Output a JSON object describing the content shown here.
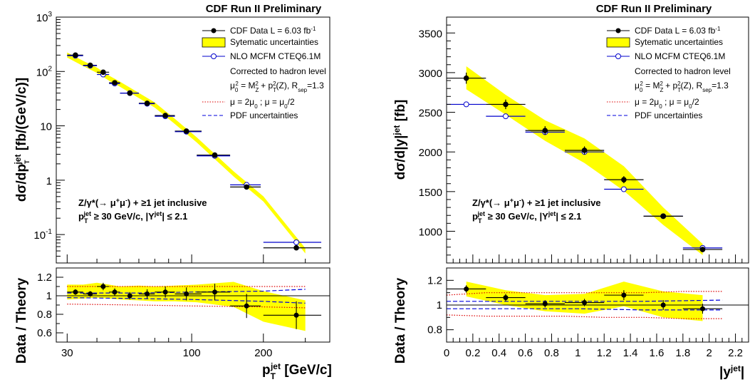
{
  "colors": {
    "band": "#ffff00",
    "band_edge": "#cccc00",
    "data": "#000000",
    "nlo": "#0000cc",
    "scale": "#dd0000",
    "pdf": "#0000dd"
  },
  "chart_data": [
    {
      "type": "scatter",
      "title": "CDF Run II Preliminary",
      "xlabel": "p_T^jet [GeV/c]",
      "ylabel": "dσ/dp_T^jet [fb/(GeV/c)]",
      "ratio_ylabel": "Data / Theory",
      "xscale": "log",
      "yscale": "log",
      "xlim": [
        27,
        380
      ],
      "ylim": [
        0.03,
        1000
      ],
      "ratio_ylim": [
        0.5,
        1.3
      ],
      "x_ticks": [
        "30",
        "100",
        "200"
      ],
      "y_ticks": [
        "10^-1",
        "1",
        "10",
        "10^2",
        "10^3"
      ],
      "ratio_ticks": [
        "0.6",
        "0.8",
        "1",
        "1.2"
      ],
      "legend": {
        "data": "CDF Data  L = 6.03 fb",
        "data_sup": "-1",
        "syst": "Sytematic uncertainties",
        "nlo": "NLO MCFM CTEQ6.1M",
        "corr": "Corrected to hadron level",
        "scale_def": "μ0² = MZ² + pT²(Z), Rsep=1.3",
        "scale_var": "μ = 2μ0 ; μ = μ0/2",
        "pdf": "PDF uncertainties"
      },
      "annotation": [
        "Z/γ*(→ μ+μ-) + ≥1 jet inclusive",
        "pT^jet ≥ 30 GeV/c, |Y^jet| ≤ 2.1"
      ],
      "series": [
        {
          "name": "CDF Data",
          "x": [
            32.5,
            37.5,
            42.5,
            47.5,
            55,
            65,
            77.5,
            95,
            125,
            170,
            275
          ],
          "xerr_lo": [
            2.5,
            2.5,
            2.5,
            2.5,
            5,
            5,
            7.5,
            10,
            20,
            25,
            75
          ],
          "xerr_hi": [
            2.5,
            2.5,
            2.5,
            2.5,
            5,
            5,
            7.5,
            15,
            20,
            25,
            75
          ],
          "y": [
            200,
            130,
            97,
            62,
            40,
            26,
            15.5,
            8.0,
            2.9,
            0.75,
            0.057
          ],
          "ratio": [
            1.04,
            1.02,
            1.1,
            1.04,
            1.0,
            1.02,
            1.04,
            1.02,
            1.04,
            0.89,
            0.79
          ],
          "ratio_err": [
            0.03,
            0.03,
            0.04,
            0.04,
            0.04,
            0.05,
            0.06,
            0.07,
            0.09,
            0.13,
            0.15
          ]
        },
        {
          "name": "NLO MCFM CTEQ6.1M",
          "x": [
            32.5,
            37.5,
            42.5,
            47.5,
            55,
            65,
            77.5,
            95,
            125,
            170,
            275
          ],
          "y": [
            195,
            128,
            88,
            60,
            40,
            25.5,
            15,
            7.8,
            2.8,
            0.82,
            0.072
          ]
        }
      ],
      "syst_band": {
        "x": [
          30,
          35,
          40,
          45,
          50,
          60,
          70,
          85,
          105,
          150,
          200,
          300
        ],
        "y": [
          200,
          140,
          105,
          75,
          58,
          36,
          24,
          12,
          5.5,
          1.3,
          0.45,
          0.05
        ],
        "rel_hi": [
          1.12,
          1.12,
          1.14,
          1.12,
          1.1,
          1.11,
          1.1,
          1.11,
          1.12,
          1.15,
          1.05,
          0.95
        ],
        "rel_lo": [
          0.96,
          0.97,
          0.98,
          0.97,
          0.96,
          0.95,
          0.94,
          0.94,
          0.93,
          0.88,
          0.72,
          0.62
        ]
      },
      "scale_band": {
        "x": [
          30,
          60,
          100,
          200,
          300
        ],
        "hi": [
          1.1,
          1.1,
          1.1,
          1.1,
          1.1
        ],
        "lo": [
          0.91,
          0.9,
          0.89,
          0.88,
          0.87
        ]
      },
      "pdf_band": {
        "x": [
          30,
          60,
          100,
          200,
          300
        ],
        "hi": [
          1.03,
          1.03,
          1.04,
          1.05,
          1.07
        ],
        "lo": [
          0.98,
          0.97,
          0.96,
          0.94,
          0.92
        ]
      }
    },
    {
      "type": "scatter",
      "title": "CDF Run II Preliminary",
      "xlabel": "|y^jet|",
      "ylabel": "dσ/d|y|^jet [fb]",
      "ratio_ylabel": "Data / Theory",
      "xlim": [
        0,
        2.3
      ],
      "ylim": [
        600,
        3700
      ],
      "ratio_ylim": [
        0.7,
        1.3
      ],
      "x_ticks": [
        "0",
        "0.2",
        "0.4",
        "0.6",
        "0.8",
        "1",
        "1.2",
        "1.4",
        "1.6",
        "1.8",
        "2",
        "2.2"
      ],
      "y_ticks": [
        "1000",
        "1500",
        "2000",
        "2500",
        "3000",
        "3500"
      ],
      "ratio_ticks": [
        "0.8",
        "1",
        "1.2"
      ],
      "legend": {
        "data": "CDF Data  L = 6.03 fb",
        "data_sup": "-1",
        "syst": "Sytematic uncertainties",
        "nlo": "NLO MCFM CTEQ6.1M",
        "corr": "Corrected to hadron level",
        "scale_def": "μ0² = MZ² + pT²(Z), Rsep=1.3",
        "scale_var": "μ = 2μ0 ; μ = μ0/2",
        "pdf": "PDF uncertainties"
      },
      "annotation": [
        "Z/γ*(→ μ+μ-) + ≥1 jet inclusive",
        "pT^jet ≥ 30 GeV/c, |Y^jet| ≤ 2.1"
      ],
      "series": [
        {
          "name": "CDF Data",
          "x": [
            0.15,
            0.45,
            0.75,
            1.05,
            1.35,
            1.65,
            1.95
          ],
          "xerr": [
            0.15,
            0.15,
            0.15,
            0.15,
            0.15,
            0.15,
            0.15
          ],
          "y": [
            2930,
            2600,
            2270,
            2020,
            1650,
            1190,
            770
          ],
          "yerr": [
            70,
            60,
            55,
            50,
            45,
            30,
            25
          ],
          "ratio": [
            1.13,
            1.06,
            1.01,
            1.02,
            1.08,
            1.0,
            0.97
          ],
          "ratio_err": [
            0.03,
            0.03,
            0.03,
            0.03,
            0.04,
            0.04,
            0.04
          ]
        },
        {
          "name": "NLO MCFM CTEQ6.1M",
          "x": [
            0.15,
            0.45,
            0.75,
            1.05,
            1.35,
            1.65,
            1.95
          ],
          "y": [
            2600,
            2450,
            2250,
            2000,
            1530,
            1190,
            790
          ]
        }
      ],
      "syst_band": {
        "x": [
          0.15,
          0.45,
          0.75,
          1.05,
          1.35,
          1.65,
          1.95
        ],
        "hi": [
          3080,
          2720,
          2400,
          2170,
          1820,
          1300,
          840
        ],
        "lo": [
          2790,
          2470,
          2140,
          1860,
          1510,
          1080,
          700
        ],
        "rel_hi": [
          1.19,
          1.12,
          1.08,
          1.09,
          1.19,
          1.11,
          1.08
        ],
        "rel_lo": [
          1.07,
          1.0,
          0.95,
          0.93,
          0.99,
          0.9,
          0.87
        ]
      },
      "scale_band": {
        "x": [
          0.0,
          0.3,
          0.6,
          0.9,
          1.2,
          1.5,
          1.8,
          2.1
        ],
        "hi": [
          1.08,
          1.1,
          1.1,
          1.1,
          1.1,
          1.1,
          1.11,
          1.11
        ],
        "lo": [
          0.92,
          0.91,
          0.91,
          0.91,
          0.9,
          0.9,
          0.89,
          0.89
        ]
      },
      "pdf_band": {
        "x": [
          0.0,
          0.5,
          1.0,
          1.5,
          2.1
        ],
        "hi": [
          1.03,
          1.03,
          1.03,
          1.03,
          1.04
        ],
        "lo": [
          0.97,
          0.97,
          0.97,
          0.96,
          0.96
        ]
      }
    }
  ]
}
